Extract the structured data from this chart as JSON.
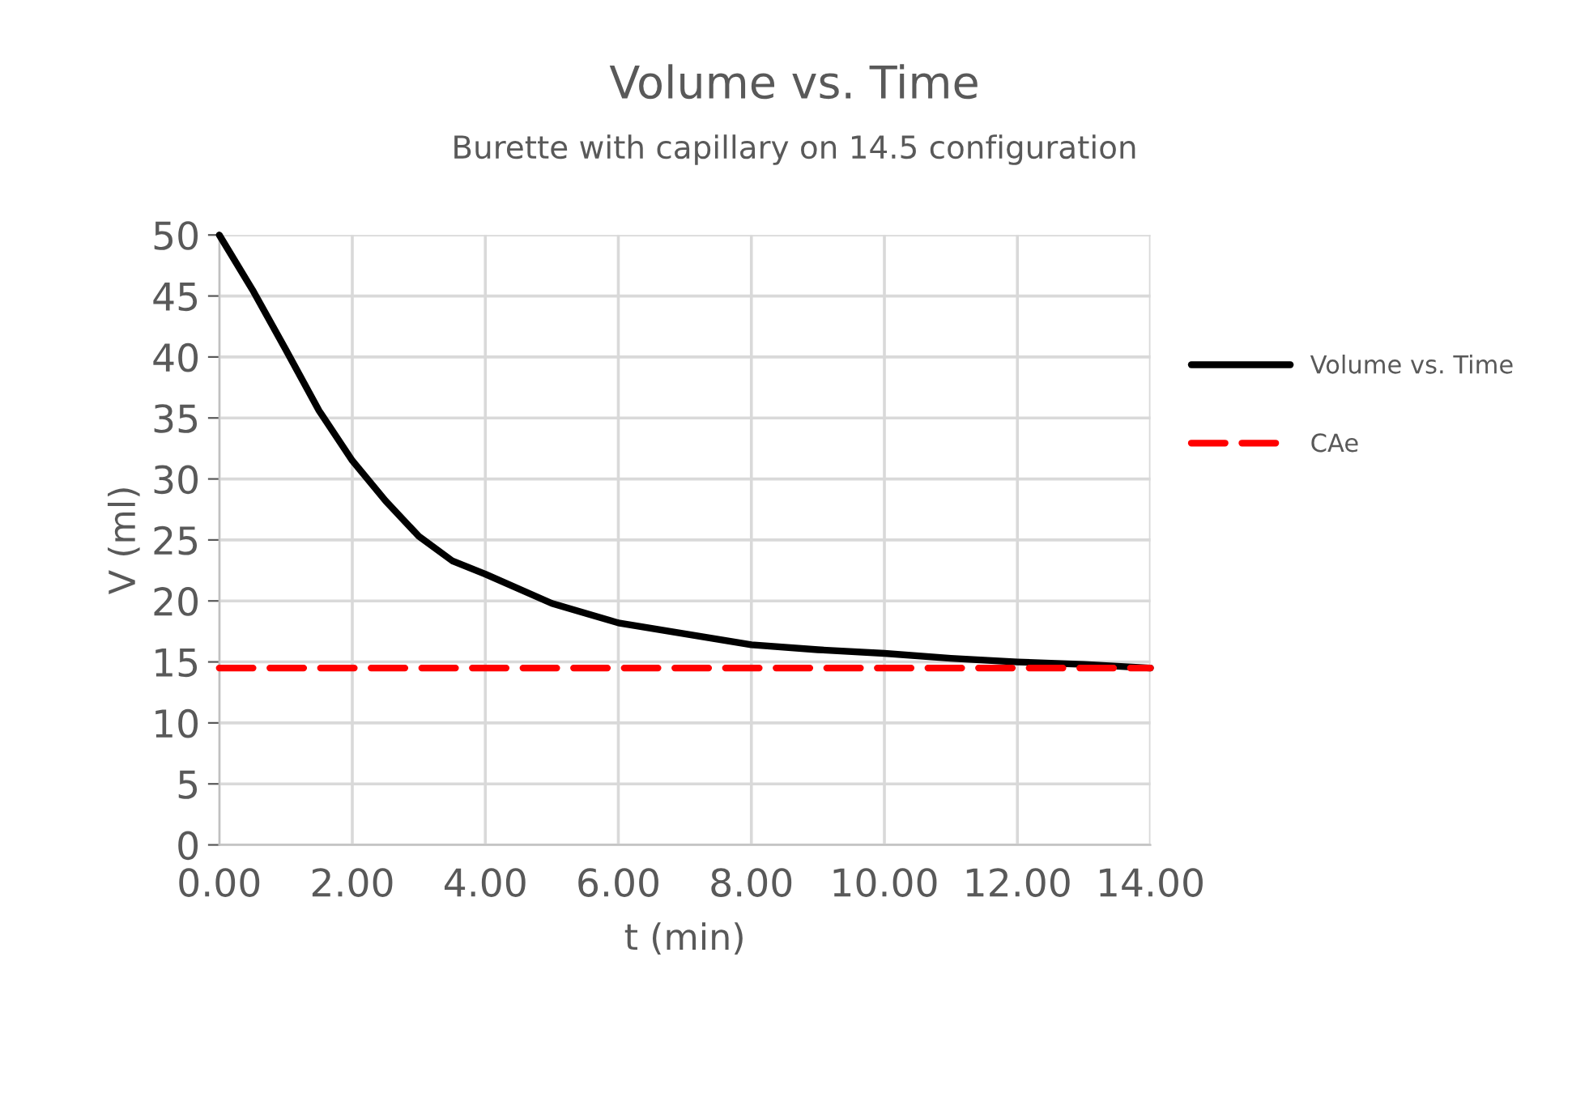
{
  "chart_data": {
    "type": "line",
    "title": "Volume vs. Time",
    "subtitle": "Burette with capillary on 14.5 configuration",
    "xlabel": "t (min)",
    "ylabel": "V (ml)",
    "series": [
      {
        "name": "Volume vs. Time",
        "color": "#000000",
        "line_style": "solid",
        "x": [
          0,
          0.5,
          1,
          1.5,
          2,
          2.5,
          3,
          3.5,
          4,
          5,
          6,
          7,
          8,
          9,
          10,
          11,
          12,
          13,
          14
        ],
        "values": [
          50,
          45.5,
          40.6,
          35.6,
          31.5,
          28.2,
          25.3,
          23.3,
          22.2,
          19.8,
          18.2,
          17.3,
          16.4,
          16.0,
          15.7,
          15.3,
          15.0,
          14.8,
          14.5
        ]
      },
      {
        "name": "CAe",
        "color": "#ff0000",
        "line_style": "dashed",
        "x": [
          0,
          14
        ],
        "values": [
          14.5,
          14.5
        ]
      }
    ],
    "xlim": [
      0,
      14
    ],
    "xticks": [
      {
        "value": 0,
        "label": "0.00"
      },
      {
        "value": 2,
        "label": "2.00"
      },
      {
        "value": 4,
        "label": "4.00"
      },
      {
        "value": 6,
        "label": "6.00"
      },
      {
        "value": 8,
        "label": "8.00"
      },
      {
        "value": 10,
        "label": "10.00"
      },
      {
        "value": 12,
        "label": "12.00"
      },
      {
        "value": 14,
        "label": "14.00"
      }
    ],
    "ylim": [
      0,
      50
    ],
    "yticks": [
      0,
      5,
      10,
      15,
      20,
      25,
      30,
      35,
      40,
      45,
      50
    ],
    "grid": true,
    "legend": "right",
    "marker": "none"
  }
}
